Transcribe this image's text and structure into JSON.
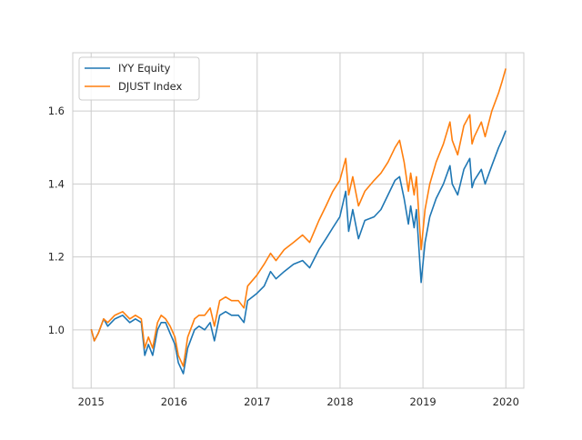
{
  "chart_data": {
    "type": "line",
    "title": "",
    "xlabel": "",
    "ylabel": "",
    "x_ticks": [
      "2015",
      "2016",
      "2017",
      "2018",
      "2019",
      "2020"
    ],
    "y_ticks": [
      "1.0",
      "1.2",
      "1.4",
      "1.6"
    ],
    "xlim": [
      "2014-10-12",
      "2020-03-20"
    ],
    "ylim": [
      0.84,
      1.76
    ],
    "grid": true,
    "legend_position": "top-left",
    "colors": {
      "IYY Equity": "#1f77b4",
      "DJUST Index": "#ff7f0e",
      "grid": "#cccccc",
      "spine": "#cccccc"
    },
    "series": [
      {
        "name": "IYY Equity",
        "points": [
          [
            "2015-01-02",
            1.0
          ],
          [
            "2015-01-15",
            0.97
          ],
          [
            "2015-02-01",
            0.99
          ],
          [
            "2015-02-25",
            1.03
          ],
          [
            "2015-03-15",
            1.01
          ],
          [
            "2015-04-15",
            1.03
          ],
          [
            "2015-05-20",
            1.04
          ],
          [
            "2015-06-20",
            1.02
          ],
          [
            "2015-07-15",
            1.03
          ],
          [
            "2015-08-10",
            1.02
          ],
          [
            "2015-08-25",
            0.93
          ],
          [
            "2015-09-10",
            0.96
          ],
          [
            "2015-09-29",
            0.93
          ],
          [
            "2015-10-20",
            1.0
          ],
          [
            "2015-11-05",
            1.02
          ],
          [
            "2015-11-25",
            1.02
          ],
          [
            "2015-12-15",
            0.99
          ],
          [
            "2016-01-05",
            0.96
          ],
          [
            "2016-01-20",
            0.91
          ],
          [
            "2016-02-11",
            0.88
          ],
          [
            "2016-03-01",
            0.95
          ],
          [
            "2016-03-31",
            1.0
          ],
          [
            "2016-04-20",
            1.01
          ],
          [
            "2016-05-15",
            1.0
          ],
          [
            "2016-06-08",
            1.02
          ],
          [
            "2016-06-27",
            0.97
          ],
          [
            "2016-07-20",
            1.04
          ],
          [
            "2016-08-15",
            1.05
          ],
          [
            "2016-09-10",
            1.04
          ],
          [
            "2016-10-10",
            1.04
          ],
          [
            "2016-11-04",
            1.02
          ],
          [
            "2016-11-20",
            1.08
          ],
          [
            "2016-12-31",
            1.1
          ],
          [
            "2017-02-01",
            1.12
          ],
          [
            "2017-03-01",
            1.16
          ],
          [
            "2017-03-25",
            1.14
          ],
          [
            "2017-04-30",
            1.16
          ],
          [
            "2017-06-10",
            1.18
          ],
          [
            "2017-07-20",
            1.19
          ],
          [
            "2017-08-20",
            1.17
          ],
          [
            "2017-09-30",
            1.22
          ],
          [
            "2017-10-31",
            1.25
          ],
          [
            "2017-11-30",
            1.28
          ],
          [
            "2017-12-31",
            1.31
          ],
          [
            "2018-01-26",
            1.38
          ],
          [
            "2018-02-08",
            1.27
          ],
          [
            "2018-02-26",
            1.33
          ],
          [
            "2018-03-23",
            1.25
          ],
          [
            "2018-04-20",
            1.3
          ],
          [
            "2018-05-31",
            1.31
          ],
          [
            "2018-06-30",
            1.33
          ],
          [
            "2018-07-31",
            1.37
          ],
          [
            "2018-08-31",
            1.41
          ],
          [
            "2018-09-20",
            1.42
          ],
          [
            "2018-10-10",
            1.36
          ],
          [
            "2018-10-29",
            1.29
          ],
          [
            "2018-11-08",
            1.34
          ],
          [
            "2018-11-23",
            1.28
          ],
          [
            "2018-12-03",
            1.33
          ],
          [
            "2018-12-24",
            1.13
          ],
          [
            "2019-01-10",
            1.24
          ],
          [
            "2019-01-31",
            1.31
          ],
          [
            "2019-02-28",
            1.36
          ],
          [
            "2019-04-01",
            1.4
          ],
          [
            "2019-04-30",
            1.45
          ],
          [
            "2019-05-10",
            1.4
          ],
          [
            "2019-06-03",
            1.37
          ],
          [
            "2019-06-30",
            1.44
          ],
          [
            "2019-07-26",
            1.47
          ],
          [
            "2019-08-05",
            1.39
          ],
          [
            "2019-08-15",
            1.41
          ],
          [
            "2019-09-15",
            1.44
          ],
          [
            "2019-10-02",
            1.4
          ],
          [
            "2019-10-31",
            1.45
          ],
          [
            "2019-11-30",
            1.5
          ],
          [
            "2019-12-15",
            1.52
          ],
          [
            "2019-12-31",
            1.545
          ]
        ]
      },
      {
        "name": "DJUST Index",
        "points": [
          [
            "2015-01-02",
            1.0
          ],
          [
            "2015-01-15",
            0.97
          ],
          [
            "2015-02-01",
            0.99
          ],
          [
            "2015-02-25",
            1.03
          ],
          [
            "2015-03-15",
            1.02
          ],
          [
            "2015-04-15",
            1.04
          ],
          [
            "2015-05-20",
            1.05
          ],
          [
            "2015-06-20",
            1.03
          ],
          [
            "2015-07-15",
            1.04
          ],
          [
            "2015-08-10",
            1.03
          ],
          [
            "2015-08-25",
            0.95
          ],
          [
            "2015-09-10",
            0.98
          ],
          [
            "2015-09-29",
            0.95
          ],
          [
            "2015-10-20",
            1.02
          ],
          [
            "2015-11-05",
            1.04
          ],
          [
            "2015-11-25",
            1.03
          ],
          [
            "2015-12-15",
            1.01
          ],
          [
            "2016-01-05",
            0.98
          ],
          [
            "2016-01-20",
            0.93
          ],
          [
            "2016-02-11",
            0.9
          ],
          [
            "2016-03-01",
            0.98
          ],
          [
            "2016-03-31",
            1.03
          ],
          [
            "2016-04-20",
            1.04
          ],
          [
            "2016-05-15",
            1.04
          ],
          [
            "2016-06-08",
            1.06
          ],
          [
            "2016-06-27",
            1.01
          ],
          [
            "2016-07-20",
            1.08
          ],
          [
            "2016-08-15",
            1.09
          ],
          [
            "2016-09-10",
            1.08
          ],
          [
            "2016-10-10",
            1.08
          ],
          [
            "2016-11-04",
            1.06
          ],
          [
            "2016-11-20",
            1.12
          ],
          [
            "2016-12-31",
            1.15
          ],
          [
            "2017-02-01",
            1.18
          ],
          [
            "2017-03-01",
            1.21
          ],
          [
            "2017-03-25",
            1.19
          ],
          [
            "2017-04-30",
            1.22
          ],
          [
            "2017-06-10",
            1.24
          ],
          [
            "2017-07-20",
            1.26
          ],
          [
            "2017-08-20",
            1.24
          ],
          [
            "2017-09-30",
            1.3
          ],
          [
            "2017-10-31",
            1.34
          ],
          [
            "2017-11-30",
            1.38
          ],
          [
            "2017-12-31",
            1.41
          ],
          [
            "2018-01-26",
            1.47
          ],
          [
            "2018-02-08",
            1.37
          ],
          [
            "2018-02-26",
            1.42
          ],
          [
            "2018-03-23",
            1.34
          ],
          [
            "2018-04-20",
            1.38
          ],
          [
            "2018-05-31",
            1.41
          ],
          [
            "2018-06-30",
            1.43
          ],
          [
            "2018-07-31",
            1.46
          ],
          [
            "2018-08-31",
            1.5
          ],
          [
            "2018-09-20",
            1.52
          ],
          [
            "2018-10-10",
            1.46
          ],
          [
            "2018-10-29",
            1.38
          ],
          [
            "2018-11-08",
            1.43
          ],
          [
            "2018-11-23",
            1.37
          ],
          [
            "2018-12-03",
            1.42
          ],
          [
            "2018-12-24",
            1.22
          ],
          [
            "2019-01-10",
            1.33
          ],
          [
            "2019-01-31",
            1.4
          ],
          [
            "2019-02-28",
            1.46
          ],
          [
            "2019-04-01",
            1.51
          ],
          [
            "2019-04-30",
            1.57
          ],
          [
            "2019-05-10",
            1.52
          ],
          [
            "2019-06-03",
            1.48
          ],
          [
            "2019-06-30",
            1.56
          ],
          [
            "2019-07-26",
            1.59
          ],
          [
            "2019-08-05",
            1.51
          ],
          [
            "2019-08-15",
            1.53
          ],
          [
            "2019-09-15",
            1.57
          ],
          [
            "2019-10-02",
            1.53
          ],
          [
            "2019-10-31",
            1.6
          ],
          [
            "2019-11-30",
            1.65
          ],
          [
            "2019-12-15",
            1.68
          ],
          [
            "2019-12-31",
            1.715
          ]
        ]
      }
    ]
  }
}
